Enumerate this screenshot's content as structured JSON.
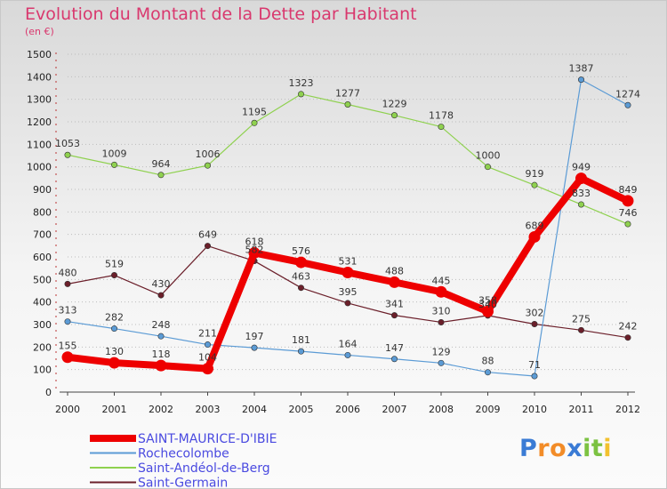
{
  "chart_data": {
    "type": "line",
    "title": "Evolution du Montant de la Dette par Habitant",
    "subtitle": "(en €)",
    "x": [
      "2000",
      "2001",
      "2002",
      "2003",
      "2004",
      "2005",
      "2006",
      "2007",
      "2008",
      "2009",
      "2010",
      "2011",
      "2012"
    ],
    "ylim": [
      0,
      1500
    ],
    "yticks": [
      0,
      100,
      200,
      300,
      400,
      500,
      600,
      700,
      800,
      900,
      1000,
      1100,
      1200,
      1300,
      1400,
      1500
    ],
    "grid": "dotted-horizontal",
    "legend_position": "bottom-left",
    "series": [
      {
        "name": "SAINT-MAURICE-D'IBIE",
        "color": "#ee0000",
        "values": [
          155,
          130,
          118,
          104,
          618,
          576,
          531,
          488,
          445,
          358,
          689,
          949,
          849
        ]
      },
      {
        "name": "Rochecolombe",
        "color": "#5b9bd5",
        "values": [
          313,
          282,
          248,
          211,
          197,
          181,
          164,
          147,
          129,
          88,
          71,
          1387,
          1274
        ]
      },
      {
        "name": "Saint-Andéol-de-Berg",
        "color": "#8fd14f",
        "values": [
          1053,
          1009,
          964,
          1006,
          1195,
          1323,
          1277,
          1229,
          1178,
          1000,
          919,
          833,
          746
        ]
      },
      {
        "name": "Saint-Germain",
        "color": "#6b1f2a",
        "values": [
          480,
          519,
          430,
          649,
          582,
          463,
          395,
          341,
          310,
          340,
          302,
          275,
          242
        ]
      }
    ]
  },
  "logo": {
    "text": "Proxiti",
    "letters": [
      {
        "ch": "P",
        "color": "#3a7bd5"
      },
      {
        "ch": "r",
        "color": "#f28c28"
      },
      {
        "ch": "o",
        "color": "#f28c28"
      },
      {
        "ch": "x",
        "color": "#3a7bd5"
      },
      {
        "ch": "i",
        "color": "#7cc242"
      },
      {
        "ch": "t",
        "color": "#7cc242"
      },
      {
        "ch": "i",
        "color": "#f2c12e"
      }
    ]
  }
}
